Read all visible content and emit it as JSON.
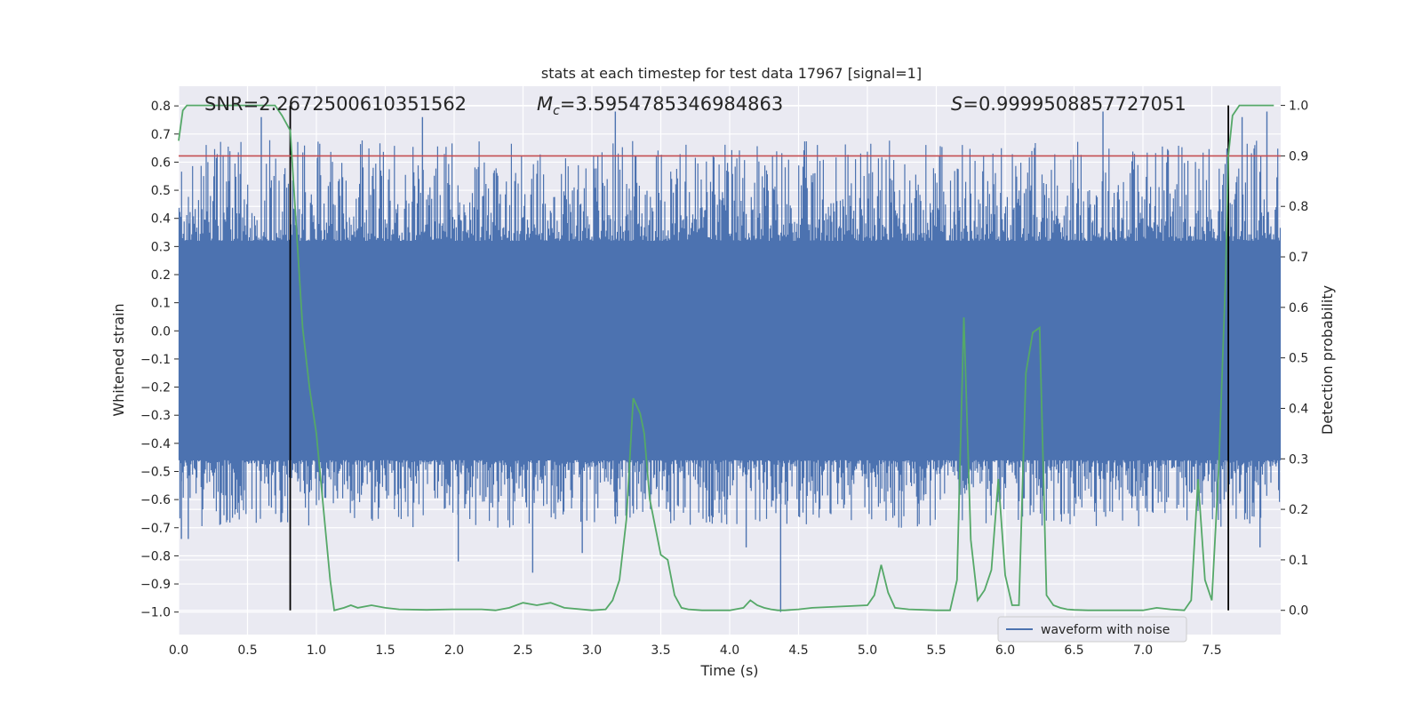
{
  "chart_data": {
    "type": "line",
    "title": "stats at each timestep for test data 17967 [signal=1]",
    "xlabel": "Time (s)",
    "ylabel": "Whitened strain",
    "y2label": "Detection probability",
    "xlim": [
      0.0,
      8.0
    ],
    "ylim": [
      -1.08,
      0.87
    ],
    "y2lim": [
      -0.048,
      1.038
    ],
    "xticks": [
      "0.0",
      "0.5",
      "1.0",
      "1.5",
      "2.0",
      "2.5",
      "3.0",
      "3.5",
      "4.0",
      "4.5",
      "5.0",
      "5.5",
      "6.0",
      "6.5",
      "7.0",
      "7.5"
    ],
    "yticks": [
      "0.8",
      "0.7",
      "0.6",
      "0.5",
      "0.4",
      "0.3",
      "0.2",
      "0.1",
      "0.0",
      "-0.1",
      "-0.2",
      "-0.3",
      "-0.4",
      "-0.5",
      "-0.6",
      "-0.7",
      "-0.8",
      "-0.9",
      "-1.0"
    ],
    "y2ticks": [
      "1.0",
      "0.9",
      "0.8",
      "0.7",
      "0.6",
      "0.5",
      "0.4",
      "0.3",
      "0.2",
      "0.1",
      "0.0"
    ],
    "annotations": {
      "snr": "SNR=2.2672500610351562",
      "mc": "=3.5954785346984863",
      "mc_symbol": "M",
      "mc_sub": "c",
      "s": "=0.9999508857727051",
      "s_symbol": "S"
    },
    "legend": {
      "label": "waveform with noise",
      "position": "lower-right"
    },
    "threshold": {
      "value": 0.9,
      "axis": "y2",
      "color": "#c44e52"
    },
    "vlines": [
      0.81,
      7.62
    ],
    "series": [
      {
        "name": "waveform with noise",
        "axis": "y",
        "color": "#4c72b0",
        "envelope": [
          0.32,
          -0.46
        ],
        "min": -1.0,
        "max": 0.78,
        "spikes": [
          {
            "x": 0.02,
            "v": -0.74
          },
          {
            "x": 0.07,
            "v": -0.74
          },
          {
            "x": 0.6,
            "v": 0.76
          },
          {
            "x": 1.77,
            "v": 0.76
          },
          {
            "x": 2.03,
            "v": -0.82
          },
          {
            "x": 2.57,
            "v": -0.86
          },
          {
            "x": 2.93,
            "v": -0.79
          },
          {
            "x": 3.17,
            "v": 0.78
          },
          {
            "x": 4.12,
            "v": -0.77
          },
          {
            "x": 4.37,
            "v": -1.0
          },
          {
            "x": 6.71,
            "v": 0.78
          },
          {
            "x": 7.59,
            "v": -0.6
          },
          {
            "x": 7.72,
            "v": 0.76
          },
          {
            "x": 7.85,
            "v": -0.77
          },
          {
            "x": 7.9,
            "v": 0.78
          }
        ]
      },
      {
        "name": "detection probability",
        "axis": "y2",
        "color": "#55a868",
        "x": [
          0.0,
          0.03,
          0.06,
          0.1,
          0.2,
          0.3,
          0.4,
          0.5,
          0.6,
          0.7,
          0.75,
          0.81,
          0.9,
          0.95,
          1.0,
          1.1,
          1.13,
          1.2,
          1.25,
          1.3,
          1.4,
          1.5,
          1.6,
          1.8,
          2.0,
          2.2,
          2.3,
          2.4,
          2.5,
          2.6,
          2.7,
          2.8,
          3.0,
          3.1,
          3.15,
          3.2,
          3.25,
          3.3,
          3.35,
          3.38,
          3.42,
          3.5,
          3.55,
          3.6,
          3.65,
          3.7,
          3.8,
          4.0,
          4.1,
          4.15,
          4.2,
          4.25,
          4.3,
          4.35,
          4.4,
          4.5,
          4.6,
          5.0,
          5.05,
          5.1,
          5.15,
          5.2,
          5.3,
          5.5,
          5.6,
          5.65,
          5.7,
          5.75,
          5.8,
          5.85,
          5.9,
          5.95,
          6.0,
          6.05,
          6.1,
          6.15,
          6.2,
          6.25,
          6.3,
          6.35,
          6.4,
          6.45,
          6.5,
          6.6,
          7.0,
          7.1,
          7.2,
          7.3,
          7.35,
          7.4,
          7.45,
          7.5,
          7.55,
          7.6,
          7.62,
          7.65,
          7.7,
          7.75,
          7.8,
          7.85,
          7.9,
          7.95
        ],
        "values": [
          0.93,
          0.99,
          1.0,
          1.0,
          1.0,
          1.0,
          1.0,
          1.0,
          1.0,
          1.0,
          0.98,
          0.95,
          0.56,
          0.44,
          0.35,
          0.06,
          0.0,
          0.005,
          0.01,
          0.005,
          0.01,
          0.005,
          0.002,
          0.001,
          0.002,
          0.002,
          0.0,
          0.005,
          0.015,
          0.01,
          0.015,
          0.005,
          0.0,
          0.002,
          0.02,
          0.06,
          0.18,
          0.42,
          0.39,
          0.35,
          0.22,
          0.11,
          0.1,
          0.03,
          0.005,
          0.002,
          0.0,
          0.0,
          0.005,
          0.02,
          0.01,
          0.005,
          0.002,
          0.0,
          0.0,
          0.002,
          0.005,
          0.01,
          0.03,
          0.09,
          0.035,
          0.005,
          0.002,
          0.0,
          0.0,
          0.06,
          0.58,
          0.14,
          0.02,
          0.04,
          0.08,
          0.26,
          0.07,
          0.01,
          0.01,
          0.47,
          0.55,
          0.56,
          0.03,
          0.01,
          0.005,
          0.002,
          0.001,
          0.0,
          0.0,
          0.005,
          0.002,
          0.0,
          0.02,
          0.26,
          0.06,
          0.02,
          0.28,
          0.66,
          0.9,
          0.98,
          1.0,
          1.0,
          1.0,
          1.0,
          1.0,
          1.0
        ]
      }
    ]
  }
}
